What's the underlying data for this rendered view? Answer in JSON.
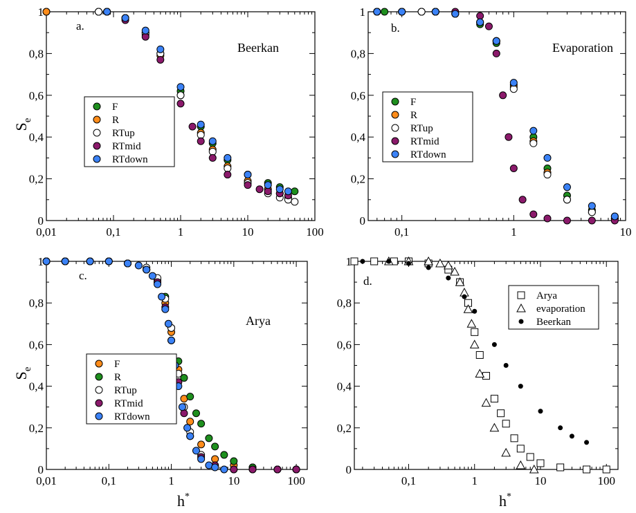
{
  "figure": {
    "axis_titles": {
      "y_main": "S",
      "y_sub": "e",
      "x_main": "h",
      "x_sup": "*"
    }
  },
  "chart_data": [
    {
      "panel": "a",
      "type": "scatter",
      "tag": "a.",
      "title": "Beerkan",
      "xscale": "log",
      "xlim": [
        0.01,
        100
      ],
      "ylim": [
        0,
        1
      ],
      "xticks": [
        0.01,
        0.1,
        1,
        10,
        100
      ],
      "xtick_labels": [
        "0,01",
        "0,1",
        "1",
        "10",
        "100"
      ],
      "yticks": [
        0,
        0.2,
        0.4,
        0.6,
        0.8,
        1
      ],
      "ytick_labels": [
        "0",
        "0,2",
        "0,4",
        "0,6",
        "0,8",
        "1"
      ],
      "ylabel": "Se",
      "xlabel": "",
      "legend_position": "middle-left",
      "legend": [
        "F",
        "R",
        "RTup",
        "RTmid",
        "RTdown"
      ],
      "series": [
        {
          "name": "F",
          "marker": "circle",
          "fill": "#1e8f1e",
          "x": [
            0.01,
            0.06,
            0.08,
            0.15,
            0.3,
            0.5,
            1,
            2,
            3,
            5,
            10,
            20,
            30,
            50
          ],
          "y": [
            1.0,
            1.0,
            1.0,
            0.97,
            0.9,
            0.8,
            0.62,
            0.45,
            0.37,
            0.29,
            0.22,
            0.18,
            0.16,
            0.14
          ]
        },
        {
          "name": "R",
          "marker": "circle",
          "fill": "#ff8c1a",
          "x": [
            0.01,
            0.06,
            0.08,
            0.15,
            0.3,
            0.5,
            1,
            2,
            3,
            5,
            10,
            20,
            30,
            40
          ],
          "y": [
            1.0,
            1.0,
            1.0,
            0.97,
            0.89,
            0.79,
            0.6,
            0.42,
            0.34,
            0.26,
            0.19,
            0.15,
            0.13,
            0.11
          ]
        },
        {
          "name": "RTup",
          "marker": "circle",
          "fill": "#ffffff",
          "x": [
            0.06,
            0.08,
            0.15,
            0.3,
            0.5,
            1,
            2,
            3,
            5,
            10,
            20,
            30,
            40,
            50
          ],
          "y": [
            1.0,
            1.0,
            0.97,
            0.9,
            0.8,
            0.6,
            0.41,
            0.33,
            0.25,
            0.18,
            0.13,
            0.11,
            0.1,
            0.09
          ]
        },
        {
          "name": "RTmid",
          "marker": "circle",
          "fill": "#8b1a6b",
          "x": [
            0.08,
            0.15,
            0.3,
            0.5,
            1,
            1.5,
            2,
            3,
            5,
            10,
            15,
            20,
            30,
            40
          ],
          "y": [
            1.0,
            0.96,
            0.88,
            0.77,
            0.56,
            0.45,
            0.38,
            0.3,
            0.22,
            0.17,
            0.15,
            0.14,
            0.13,
            0.12
          ]
        },
        {
          "name": "RTdown",
          "marker": "circle",
          "fill": "#3b82f6",
          "x": [
            0.08,
            0.15,
            0.3,
            0.5,
            1,
            2,
            3,
            5,
            10,
            20,
            30,
            40
          ],
          "y": [
            1.0,
            0.97,
            0.91,
            0.82,
            0.64,
            0.46,
            0.38,
            0.3,
            0.22,
            0.17,
            0.15,
            0.14
          ]
        }
      ]
    },
    {
      "panel": "b",
      "type": "scatter",
      "tag": "b.",
      "title": "Evaporation",
      "xscale": "log",
      "xlim": [
        0.05,
        10
      ],
      "ylim": [
        0,
        1
      ],
      "xticks": [
        0.1,
        1,
        10
      ],
      "xtick_labels": [
        "0,1",
        "1",
        "10"
      ],
      "yticks": [
        0,
        0.2,
        0.4,
        0.6,
        0.8,
        1
      ],
      "ytick_labels": [
        "0",
        "0,2",
        "0,4",
        "0,6",
        "0,8",
        "1"
      ],
      "ylabel": "",
      "xlabel": "",
      "legend_position": "middle-left",
      "legend": [
        "F",
        "R",
        "RTup",
        "RTmid",
        "RTdown"
      ],
      "series": [
        {
          "name": "F",
          "marker": "circle",
          "fill": "#1e8f1e",
          "x": [
            0.06,
            0.07,
            0.1,
            0.15,
            0.2,
            0.3,
            0.5,
            0.7,
            1,
            1.5,
            2,
            3,
            5,
            8
          ],
          "y": [
            1.0,
            1.0,
            1.0,
            1.0,
            1.0,
            0.99,
            0.94,
            0.85,
            0.65,
            0.4,
            0.25,
            0.12,
            0.05,
            0.02
          ]
        },
        {
          "name": "R",
          "marker": "circle",
          "fill": "#ff8c1a",
          "x": [
            0.06,
            0.1,
            0.15,
            0.2,
            0.3,
            0.5,
            0.7,
            1,
            1.5,
            2,
            3,
            5,
            8
          ],
          "y": [
            1.0,
            1.0,
            1.0,
            1.0,
            0.99,
            0.95,
            0.86,
            0.64,
            0.38,
            0.23,
            0.1,
            0.04,
            0.01
          ]
        },
        {
          "name": "RTup",
          "marker": "circle",
          "fill": "#ffffff",
          "x": [
            0.06,
            0.1,
            0.15,
            0.2,
            0.3,
            0.5,
            0.7,
            1,
            1.5,
            2,
            3,
            5,
            8
          ],
          "y": [
            1.0,
            1.0,
            1.0,
            1.0,
            0.99,
            0.95,
            0.86,
            0.63,
            0.37,
            0.22,
            0.1,
            0.04,
            0.01
          ]
        },
        {
          "name": "RTmid",
          "marker": "circle",
          "fill": "#8b1a6b",
          "x": [
            0.06,
            0.1,
            0.2,
            0.3,
            0.5,
            0.6,
            0.7,
            0.8,
            0.9,
            1,
            1.2,
            1.5,
            2,
            3,
            5,
            8
          ],
          "y": [
            1.0,
            1.0,
            1.0,
            1.0,
            0.98,
            0.93,
            0.8,
            0.6,
            0.4,
            0.25,
            0.1,
            0.03,
            0.01,
            0.0,
            0.0,
            0.0
          ]
        },
        {
          "name": "RTdown",
          "marker": "circle",
          "fill": "#3b82f6",
          "x": [
            0.06,
            0.1,
            0.2,
            0.3,
            0.5,
            0.7,
            1,
            1.5,
            2,
            3,
            5,
            8
          ],
          "y": [
            1.0,
            1.0,
            1.0,
            0.99,
            0.95,
            0.86,
            0.66,
            0.43,
            0.3,
            0.16,
            0.07,
            0.02
          ]
        }
      ]
    },
    {
      "panel": "c",
      "type": "scatter",
      "tag": "c.",
      "title": "Arya",
      "xscale": "log",
      "xlim": [
        0.01,
        150
      ],
      "ylim": [
        0,
        1
      ],
      "xticks": [
        0.01,
        0.1,
        1,
        10,
        100
      ],
      "xtick_labels": [
        "0,01",
        "0,1",
        "1",
        "10",
        "100"
      ],
      "yticks": [
        0,
        0.2,
        0.4,
        0.6,
        0.8,
        1
      ],
      "ytick_labels": [
        "0",
        "0,2",
        "0,4",
        "0,6",
        "0,8",
        "1"
      ],
      "ylabel": "Se",
      "xlabel": "h*",
      "legend_position": "bottom-left",
      "legend": [
        "F",
        "R",
        "RTup",
        "RTmid",
        "RTdown"
      ],
      "series": [
        {
          "name": "F",
          "marker": "circle",
          "fill": "#ff8c1a",
          "x": [
            0.01,
            0.02,
            0.05,
            0.1,
            0.2,
            0.4,
            0.6,
            0.8,
            1,
            1.3,
            1.6,
            2,
            3,
            5,
            10,
            20,
            50,
            100
          ],
          "y": [
            1.0,
            1.0,
            1.0,
            1.0,
            0.99,
            0.96,
            0.9,
            0.8,
            0.66,
            0.48,
            0.34,
            0.23,
            0.12,
            0.05,
            0.02,
            0.01,
            0.0,
            0.0
          ]
        },
        {
          "name": "R",
          "marker": "circle",
          "fill": "#1e8f1e",
          "x": [
            0.01,
            0.02,
            0.05,
            0.1,
            0.2,
            0.4,
            0.6,
            0.8,
            1,
            1.3,
            1.6,
            2,
            2.5,
            3,
            4,
            5,
            7,
            10,
            20,
            50,
            100
          ],
          "y": [
            1.0,
            1.0,
            1.0,
            1.0,
            0.99,
            0.96,
            0.91,
            0.83,
            0.68,
            0.52,
            0.44,
            0.35,
            0.27,
            0.22,
            0.15,
            0.11,
            0.07,
            0.04,
            0.01,
            0.0,
            0.0
          ]
        },
        {
          "name": "RTup",
          "marker": "circle",
          "fill": "#ffffff",
          "x": [
            0.01,
            0.02,
            0.05,
            0.1,
            0.2,
            0.4,
            0.6,
            0.8,
            1,
            1.3,
            1.6,
            2,
            3,
            5,
            10,
            20,
            50,
            100
          ],
          "y": [
            1.0,
            1.0,
            1.0,
            1.0,
            0.99,
            0.97,
            0.92,
            0.82,
            0.68,
            0.46,
            0.3,
            0.18,
            0.07,
            0.02,
            0.0,
            0.0,
            0.0,
            0.0
          ]
        },
        {
          "name": "RTmid",
          "marker": "circle",
          "fill": "#8b1a6b",
          "x": [
            0.01,
            0.02,
            0.05,
            0.1,
            0.2,
            0.4,
            0.6,
            0.8,
            1,
            1.3,
            1.6,
            2,
            3,
            5,
            10,
            20,
            50,
            100
          ],
          "y": [
            1.0,
            1.0,
            1.0,
            1.0,
            0.99,
            0.96,
            0.9,
            0.78,
            0.62,
            0.42,
            0.27,
            0.16,
            0.06,
            0.02,
            0.0,
            0.0,
            0.0,
            0.0
          ]
        },
        {
          "name": "RTdown",
          "marker": "circle",
          "fill": "#3b82f6",
          "x": [
            0.01,
            0.02,
            0.05,
            0.1,
            0.2,
            0.3,
            0.4,
            0.5,
            0.6,
            0.7,
            0.8,
            0.9,
            1,
            1.15,
            1.3,
            1.5,
            1.8,
            2,
            2.5,
            3,
            4,
            5,
            7
          ],
          "y": [
            1.0,
            1.0,
            1.0,
            1.0,
            0.99,
            0.98,
            0.96,
            0.93,
            0.89,
            0.83,
            0.77,
            0.7,
            0.62,
            0.5,
            0.4,
            0.3,
            0.2,
            0.16,
            0.09,
            0.05,
            0.02,
            0.01,
            0.0
          ]
        }
      ]
    },
    {
      "panel": "d",
      "type": "scatter",
      "tag": "d.",
      "title": "",
      "xscale": "log",
      "xlim": [
        0.015,
        150
      ],
      "ylim": [
        0,
        1
      ],
      "xticks": [
        0.1,
        1,
        10,
        100
      ],
      "xtick_labels": [
        "0,1",
        "1",
        "10",
        "100"
      ],
      "yticks": [
        0,
        0.2,
        0.4,
        0.6,
        0.8,
        1
      ],
      "ytick_labels": [
        "0",
        "0,2",
        "0,4",
        "0,6",
        "0,8",
        "1"
      ],
      "ylabel": "",
      "xlabel": "h*",
      "legend_position": "top-right",
      "legend": [
        "Arya",
        "evaporation",
        "Beerkan"
      ],
      "series": [
        {
          "name": "Arya",
          "marker": "square",
          "fill": "#ffffff",
          "x": [
            0.015,
            0.03,
            0.06,
            0.1,
            0.2,
            0.4,
            0.6,
            0.8,
            1,
            1.2,
            1.5,
            2,
            2.5,
            3,
            4,
            5,
            7,
            10,
            20,
            50,
            100
          ],
          "y": [
            1.0,
            1.0,
            1.0,
            1.0,
            0.99,
            0.96,
            0.9,
            0.8,
            0.66,
            0.55,
            0.45,
            0.34,
            0.27,
            0.22,
            0.15,
            0.1,
            0.06,
            0.03,
            0.01,
            0.0,
            0.0
          ]
        },
        {
          "name": "evaporation",
          "marker": "triangle",
          "fill": "#ffffff",
          "x": [
            0.05,
            0.1,
            0.2,
            0.3,
            0.4,
            0.5,
            0.6,
            0.7,
            0.8,
            0.9,
            1,
            1.2,
            1.5,
            2,
            3,
            5,
            8
          ],
          "y": [
            1.0,
            1.0,
            1.0,
            0.99,
            0.98,
            0.95,
            0.9,
            0.85,
            0.77,
            0.7,
            0.6,
            0.46,
            0.32,
            0.2,
            0.08,
            0.02,
            0.0
          ]
        },
        {
          "name": "Beerkan",
          "marker": "dot",
          "fill": "#000000",
          "x": [
            0.02,
            0.05,
            0.1,
            0.2,
            0.4,
            0.7,
            1,
            2,
            3,
            5,
            10,
            20,
            30,
            50
          ],
          "y": [
            1.0,
            1.0,
            0.99,
            0.97,
            0.92,
            0.83,
            0.76,
            0.6,
            0.5,
            0.4,
            0.28,
            0.2,
            0.16,
            0.13
          ]
        }
      ]
    }
  ]
}
